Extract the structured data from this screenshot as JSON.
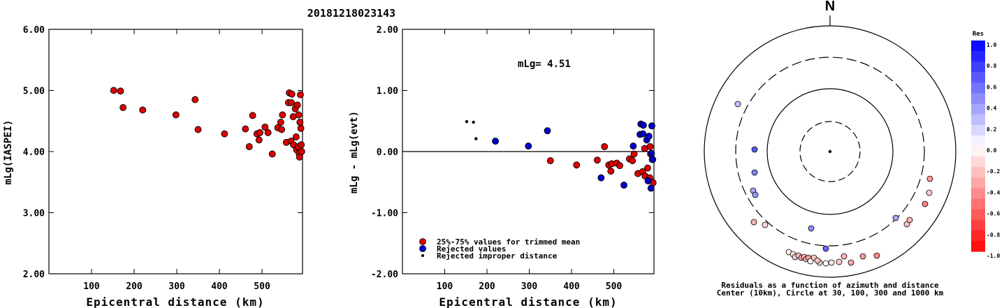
{
  "title": "20181218023143",
  "chart_data": [
    {
      "type": "scatter",
      "xlabel": "Epicentral distance (km)",
      "ylabel": "mLg(IASPEI)",
      "xticks": [
        "100",
        "200",
        "300",
        "400",
        "500"
      ],
      "yticks": [
        "2.00",
        "3.00",
        "4.00",
        "5.00",
        "6.00"
      ],
      "xlim": [
        0,
        595
      ],
      "ylim": [
        2.0,
        6.0
      ],
      "series": [
        {
          "color": "#dd0000",
          "points": [
            [
              152,
              5.0
            ],
            [
              168,
              4.99
            ],
            [
              174,
              4.72
            ],
            [
              220,
              4.68
            ],
            [
              298,
              4.6
            ],
            [
              343,
              4.85
            ],
            [
              350,
              4.36
            ],
            [
              412,
              4.29
            ],
            [
              461,
              4.37
            ],
            [
              470,
              4.08
            ],
            [
              478,
              4.59
            ],
            [
              488,
              4.29
            ],
            [
              493,
              4.19
            ],
            [
              495,
              4.31
            ],
            [
              507,
              4.4
            ],
            [
              514,
              4.31
            ],
            [
              524,
              3.96
            ],
            [
              537,
              4.39
            ],
            [
              544,
              4.48
            ],
            [
              546,
              4.36
            ],
            [
              548,
              4.6
            ],
            [
              557,
              4.15
            ],
            [
              562,
              4.8
            ],
            [
              564,
              4.96
            ],
            [
              568,
              4.17
            ],
            [
              569,
              4.8
            ],
            [
              570,
              4.94
            ],
            [
              573,
              4.57
            ],
            [
              574,
              4.11
            ],
            [
              578,
              4.7
            ],
            [
              580,
              4.24
            ],
            [
              581,
              4.03
            ],
            [
              583,
              4.76
            ],
            [
              585,
              4.08
            ],
            [
              586,
              4.6
            ],
            [
              587,
              3.97
            ],
            [
              588,
              3.91
            ],
            [
              589,
              4.48
            ],
            [
              590,
              4.93
            ],
            [
              591,
              4.38
            ],
            [
              592,
              4.11
            ],
            [
              593,
              4.0
            ]
          ]
        }
      ]
    },
    {
      "type": "scatter",
      "xlabel": "Epicentral distance (km)",
      "ylabel": "mLg - mLg(evt)",
      "xticks": [
        "100",
        "200",
        "300",
        "400",
        "500"
      ],
      "yticks": [
        "-2.00",
        "-1.00",
        "0.00",
        "1.00",
        "2.00"
      ],
      "xlim": [
        0,
        595
      ],
      "ylim": [
        -2.0,
        2.0
      ],
      "annotation": "mLg= 4.51",
      "legend": [
        "25%-75% values for trimmed mean",
        "Rejected values",
        "Rejected improper distance"
      ],
      "series": [
        {
          "name": "25%-75% values for trimmed mean",
          "color": "#dd0000",
          "points": [
            [
              350,
              -0.15
            ],
            [
              412,
              -0.22
            ],
            [
              461,
              -0.14
            ],
            [
              478,
              0.08
            ],
            [
              488,
              -0.22
            ],
            [
              493,
              -0.32
            ],
            [
              495,
              -0.2
            ],
            [
              507,
              -0.19
            ],
            [
              514,
              -0.23
            ],
            [
              537,
              -0.12
            ],
            [
              544,
              -0.15
            ],
            [
              548,
              -0.04
            ],
            [
              557,
              -0.36
            ],
            [
              568,
              -0.33
            ],
            [
              573,
              0.05
            ],
            [
              574,
              -0.4
            ],
            [
              580,
              -0.27
            ],
            [
              585,
              -0.43
            ],
            [
              586,
              0.08
            ],
            [
              587,
              -0.04
            ],
            [
              592,
              -0.13
            ],
            [
              593,
              -0.51
            ]
          ]
        },
        {
          "name": "Rejected values",
          "color": "#0000cc",
          "points": [
            [
              220,
              0.17
            ],
            [
              298,
              0.09
            ],
            [
              343,
              0.34
            ],
            [
              470,
              -0.43
            ],
            [
              524,
              -0.55
            ],
            [
              546,
              0.09
            ],
            [
              562,
              0.28
            ],
            [
              564,
              0.45
            ],
            [
              569,
              0.29
            ],
            [
              570,
              0.43
            ],
            [
              578,
              0.19
            ],
            [
              581,
              -0.48
            ],
            [
              583,
              0.25
            ],
            [
              588,
              -0.6
            ],
            [
              589,
              -0.03
            ],
            [
              590,
              0.42
            ],
            [
              591,
              -0.13
            ]
          ]
        },
        {
          "name": "Rejected improper distance",
          "color": "#000000",
          "points": [
            [
              152,
              0.49
            ],
            [
              168,
              0.48
            ],
            [
              174,
              0.21
            ]
          ]
        }
      ]
    },
    {
      "type": "polar_scatter",
      "north_label": "N",
      "caption": [
        "Residuals as a function of azimuth and distance",
        "Center (10km), Circle at 30, 100, 300 and 1000 km"
      ],
      "colorbar": {
        "title": "Res",
        "ticks": [
          "1.0",
          "0.8",
          "0.6",
          "0.4",
          "0.2",
          "0.0",
          "-0.2",
          "-0.4",
          "-0.6",
          "-0.8",
          "-1.0"
        ],
        "positive_color": "#0000ff",
        "negative_color": "#ff0000"
      },
      "points": [
        {
          "dx": -132,
          "dy": -68,
          "res": 0.25
        },
        {
          "dx": -108,
          "dy": -3,
          "res": 0.65
        },
        {
          "dx": -108,
          "dy": 30,
          "res": 0.5
        },
        {
          "dx": -110,
          "dy": 56,
          "res": 0.35
        },
        {
          "dx": -107,
          "dy": 62,
          "res": 0.4
        },
        {
          "dx": -109,
          "dy": 101,
          "res": -0.3
        },
        {
          "dx": -93,
          "dy": 105,
          "res": -0.15
        },
        {
          "dx": -27,
          "dy": 110,
          "res": 0.45
        },
        {
          "dx": -6,
          "dy": 139,
          "res": 0.6
        },
        {
          "dx": -6,
          "dy": 160,
          "res": 0.0
        },
        {
          "dx": -59,
          "dy": 144,
          "res": -0.05
        },
        {
          "dx": -53,
          "dy": 147,
          "res": -0.1
        },
        {
          "dx": -50,
          "dy": 151,
          "res": -0.2
        },
        {
          "dx": -45,
          "dy": 149,
          "res": -0.25
        },
        {
          "dx": -41,
          "dy": 152,
          "res": -0.35
        },
        {
          "dx": -37,
          "dy": 151,
          "res": -0.3
        },
        {
          "dx": -34,
          "dy": 154,
          "res": -0.25
        },
        {
          "dx": -31,
          "dy": 152,
          "res": -0.4
        },
        {
          "dx": -28,
          "dy": 157,
          "res": 0.0
        },
        {
          "dx": -23,
          "dy": 152,
          "res": -0.2
        },
        {
          "dx": -15,
          "dy": 159,
          "res": -0.15
        },
        {
          "dx": -18,
          "dy": 156,
          "res": -0.25
        },
        {
          "dx": 2,
          "dy": 159,
          "res": -0.1
        },
        {
          "dx": 13,
          "dy": 158,
          "res": -0.2
        },
        {
          "dx": 20,
          "dy": 150,
          "res": -0.3
        },
        {
          "dx": 30,
          "dy": 159,
          "res": -0.35
        },
        {
          "dx": 47,
          "dy": 150,
          "res": -0.4
        },
        {
          "dx": 67,
          "dy": 149,
          "res": -0.45
        },
        {
          "dx": 94,
          "dy": 95,
          "res": 0.35
        },
        {
          "dx": 110,
          "dy": 104,
          "res": -0.25
        },
        {
          "dx": 114,
          "dy": 98,
          "res": -0.3
        },
        {
          "dx": 136,
          "dy": 75,
          "res": -0.5
        },
        {
          "dx": 142,
          "dy": 59,
          "res": -0.2
        },
        {
          "dx": 143,
          "dy": 39,
          "res": -0.4
        }
      ]
    }
  ]
}
